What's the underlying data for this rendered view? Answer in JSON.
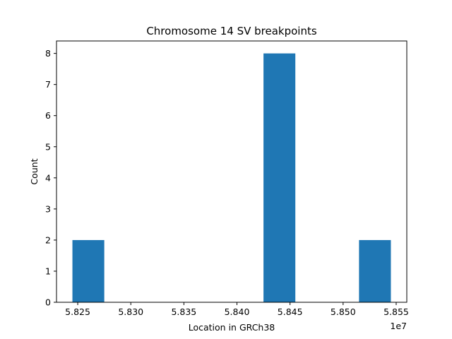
{
  "chart_data": {
    "type": "bar",
    "title": "Chromosome 14 SV breakpoints",
    "xlabel": "Location in GRCh38",
    "ylabel": "Count",
    "x_offset_label": "1e7",
    "x_scale": 10000000,
    "xlim": [
      58230000,
      58560000
    ],
    "ylim": [
      0,
      8.4
    ],
    "x_ticks": [
      5.825,
      5.83,
      5.835,
      5.84,
      5.845,
      5.85,
      5.855
    ],
    "x_tick_labels": [
      "5.825",
      "5.830",
      "5.835",
      "5.840",
      "5.845",
      "5.850",
      "5.855"
    ],
    "y_ticks": [
      0,
      1,
      2,
      3,
      4,
      5,
      6,
      7,
      8
    ],
    "y_tick_labels": [
      "0",
      "1",
      "2",
      "3",
      "4",
      "5",
      "6",
      "7",
      "8"
    ],
    "bins": [
      {
        "start": 58245000,
        "end": 58275000,
        "count": 2
      },
      {
        "start": 58275000,
        "end": 58305000,
        "count": 0
      },
      {
        "start": 58305000,
        "end": 58335000,
        "count": 0
      },
      {
        "start": 58335000,
        "end": 58365000,
        "count": 0
      },
      {
        "start": 58365000,
        "end": 58395000,
        "count": 0
      },
      {
        "start": 58395000,
        "end": 58425000,
        "count": 0
      },
      {
        "start": 58425000,
        "end": 58455000,
        "count": 8
      },
      {
        "start": 58455000,
        "end": 58485000,
        "count": 0
      },
      {
        "start": 58485000,
        "end": 58515000,
        "count": 0
      },
      {
        "start": 58515000,
        "end": 58545000,
        "count": 2
      }
    ],
    "bar_color": "#1f77b4",
    "grid": false,
    "legend": "none"
  }
}
